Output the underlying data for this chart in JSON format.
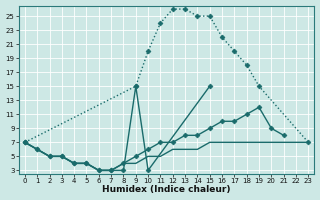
{
  "xlabel": "Humidex (Indice chaleur)",
  "background_color": "#cde8e5",
  "grid_color": "#b8d8d5",
  "line_color": "#1a6b6b",
  "series": [
    {
      "x": [
        0,
        1,
        2,
        3,
        4,
        5,
        6,
        7,
        8,
        9,
        10,
        11,
        12,
        13,
        14,
        15,
        16,
        17,
        18,
        19,
        20,
        21,
        22,
        23
      ],
      "y": [
        7,
        null,
        null,
        null,
        null,
        null,
        null,
        null,
        null,
        15,
        20,
        24,
        26,
        26,
        25,
        25,
        22,
        20,
        18,
        15,
        null,
        null,
        null,
        7
      ],
      "linestyle": "dotted",
      "marker": true
    },
    {
      "x": [
        0,
        1,
        2,
        3,
        4,
        5,
        6,
        7,
        8,
        9,
        10,
        11,
        12,
        13,
        14,
        15,
        16,
        17,
        18,
        19,
        20,
        21,
        22,
        23
      ],
      "y": [
        7,
        6,
        5,
        5,
        4,
        4,
        3,
        3,
        3,
        15,
        3,
        null,
        null,
        null,
        null,
        15,
        null,
        null,
        null,
        null,
        null,
        null,
        null,
        null
      ],
      "linestyle": "solid",
      "marker": true
    },
    {
      "x": [
        0,
        1,
        2,
        3,
        4,
        5,
        6,
        7,
        8,
        9,
        10,
        11,
        12,
        13,
        14,
        15,
        16,
        17,
        18,
        19,
        20,
        21,
        22,
        23
      ],
      "y": [
        7,
        6,
        5,
        5,
        4,
        4,
        3,
        3,
        4,
        5,
        6,
        7,
        7,
        8,
        8,
        9,
        10,
        10,
        11,
        12,
        9,
        8,
        null,
        null
      ],
      "linestyle": "solid",
      "marker": true
    },
    {
      "x": [
        0,
        1,
        2,
        3,
        4,
        5,
        6,
        7,
        8,
        9,
        10,
        11,
        12,
        13,
        14,
        15,
        16,
        17,
        18,
        19,
        20,
        21,
        22,
        23
      ],
      "y": [
        7,
        6,
        5,
        5,
        4,
        4,
        3,
        3,
        4,
        4,
        5,
        5,
        6,
        6,
        6,
        7,
        7,
        7,
        7,
        7,
        7,
        7,
        7,
        7
      ],
      "linestyle": "solid",
      "marker": false
    }
  ],
  "xlim": [
    0,
    23
  ],
  "ylim": [
    2.5,
    26.5
  ],
  "yticks": [
    3,
    5,
    7,
    9,
    11,
    13,
    15,
    17,
    19,
    21,
    23,
    25
  ],
  "xticks": [
    0,
    1,
    2,
    3,
    4,
    5,
    6,
    7,
    8,
    9,
    10,
    11,
    12,
    13,
    14,
    15,
    16,
    17,
    18,
    19,
    20,
    21,
    22,
    23
  ],
  "markersize": 2.5,
  "linewidth": 1.0
}
